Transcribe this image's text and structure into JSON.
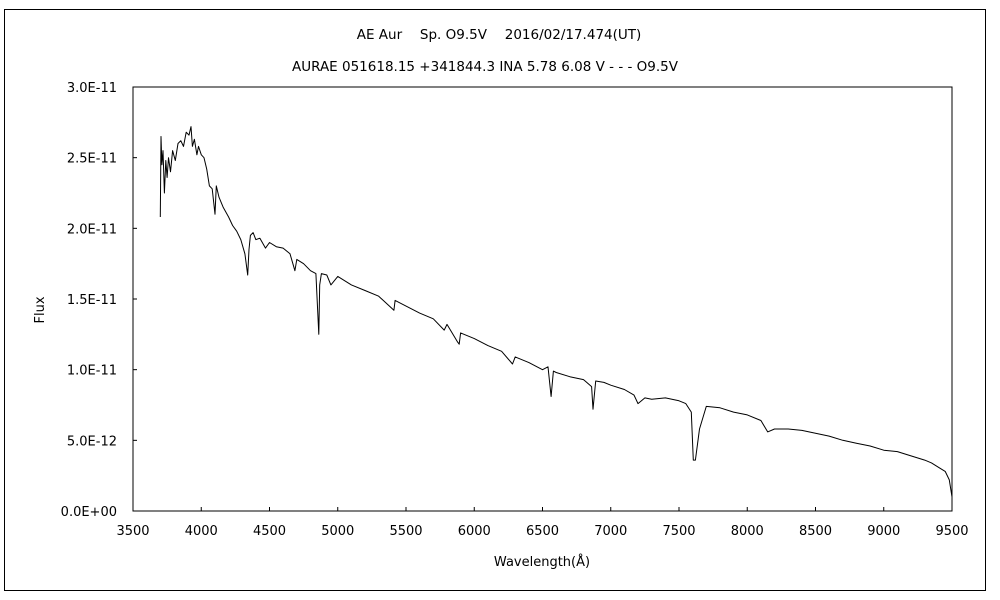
{
  "chart_data": {
    "type": "line",
    "title": "AE Aur　 Sp. O9.5V　 2016/02/17.474(UT)",
    "subtitle": "AURAE 051618.15 +341844.3 INA 5.78 6.08 V - - - O9.5V",
    "xlabel": "Wavelength(Å)",
    "ylabel": "Flux",
    "xlim": [
      3500,
      9500
    ],
    "ylim": [
      0,
      3e-11
    ],
    "xticks": [
      3500,
      4000,
      4500,
      5000,
      5500,
      6000,
      6500,
      7000,
      7500,
      8000,
      8500,
      9000,
      9500
    ],
    "yticks": [
      {
        "value": 0,
        "label": "0.0E+00"
      },
      {
        "value": 5e-12,
        "label": "5.0E-12"
      },
      {
        "value": 1e-11,
        "label": "1.0E-11"
      },
      {
        "value": 1.5e-11,
        "label": "1.5E-11"
      },
      {
        "value": 2e-11,
        "label": "2.0E-11"
      },
      {
        "value": 2.5e-11,
        "label": "2.5E-11"
      },
      {
        "value": 3e-11,
        "label": "3.0E-11"
      }
    ],
    "grid": false,
    "legend": "none",
    "series": [
      {
        "color": "#000000",
        "x": [
          3700,
          3705,
          3712,
          3720,
          3730,
          3740,
          3750,
          3760,
          3775,
          3790,
          3810,
          3830,
          3850,
          3870,
          3890,
          3910,
          3925,
          3935,
          3950,
          3968,
          3980,
          4000,
          4020,
          4040,
          4060,
          4080,
          4101,
          4110,
          4130,
          4160,
          4200,
          4230,
          4260,
          4290,
          4320,
          4340,
          4350,
          4360,
          4380,
          4400,
          4430,
          4471,
          4500,
          4550,
          4600,
          4650,
          4686,
          4700,
          4750,
          4800,
          4840,
          4861,
          4868,
          4880,
          4920,
          4950,
          5000,
          5100,
          5200,
          5300,
          5411,
          5420,
          5500,
          5600,
          5700,
          5780,
          5800,
          5875,
          5890,
          5900,
          6000,
          6100,
          6200,
          6280,
          6300,
          6400,
          6500,
          6540,
          6563,
          6580,
          6600,
          6700,
          6800,
          6860,
          6870,
          6890,
          6950,
          7000,
          7100,
          7170,
          7200,
          7250,
          7300,
          7400,
          7500,
          7550,
          7590,
          7605,
          7620,
          7650,
          7700,
          7800,
          7900,
          8000,
          8100,
          8150,
          8200,
          8300,
          8400,
          8500,
          8600,
          8700,
          8800,
          8900,
          9000,
          9100,
          9200,
          9300,
          9350,
          9400,
          9450,
          9480,
          9500
        ],
        "values": [
          2.08e-11,
          2.65e-11,
          2.45e-11,
          2.55e-11,
          2.25e-11,
          2.48e-11,
          2.36e-11,
          2.5e-11,
          2.4e-11,
          2.55e-11,
          2.48e-11,
          2.6e-11,
          2.62e-11,
          2.58e-11,
          2.68e-11,
          2.66e-11,
          2.72e-11,
          2.58e-11,
          2.63e-11,
          2.52e-11,
          2.58e-11,
          2.52e-11,
          2.5e-11,
          2.42e-11,
          2.3e-11,
          2.28e-11,
          2.1e-11,
          2.3e-11,
          2.22e-11,
          2.15e-11,
          2.08e-11,
          2.02e-11,
          1.98e-11,
          1.92e-11,
          1.82e-11,
          1.67e-11,
          1.85e-11,
          1.95e-11,
          1.97e-11,
          1.92e-11,
          1.93e-11,
          1.86e-11,
          1.9e-11,
          1.87e-11,
          1.86e-11,
          1.82e-11,
          1.7e-11,
          1.78e-11,
          1.75e-11,
          1.7e-11,
          1.68e-11,
          1.25e-11,
          1.6e-11,
          1.68e-11,
          1.67e-11,
          1.6e-11,
          1.66e-11,
          1.6e-11,
          1.56e-11,
          1.52e-11,
          1.42e-11,
          1.49e-11,
          1.45e-11,
          1.4e-11,
          1.36e-11,
          1.28e-11,
          1.32e-11,
          1.2e-11,
          1.18e-11,
          1.26e-11,
          1.22e-11,
          1.17e-11,
          1.13e-11,
          1.04e-11,
          1.09e-11,
          1.05e-11,
          1e-11,
          1.02e-11,
          8.1e-12,
          9.9e-12,
          9.8e-12,
          9.5e-12,
          9.3e-12,
          8.8e-12,
          7.2e-12,
          9.2e-12,
          9.1e-12,
          8.9e-12,
          8.6e-12,
          8.2e-12,
          7.6e-12,
          8e-12,
          7.9e-12,
          8e-12,
          7.8e-12,
          7.6e-12,
          7e-12,
          3.6e-12,
          3.6e-12,
          5.8e-12,
          7.4e-12,
          7.3e-12,
          7e-12,
          6.8e-12,
          6.4e-12,
          5.6e-12,
          5.8e-12,
          5.8e-12,
          5.7e-12,
          5.5e-12,
          5.3e-12,
          5e-12,
          4.8e-12,
          4.6e-12,
          4.3e-12,
          4.2e-12,
          3.9e-12,
          3.6e-12,
          3.4e-12,
          3.1e-12,
          2.8e-12,
          2.2e-12,
          1e-12
        ]
      }
    ]
  }
}
